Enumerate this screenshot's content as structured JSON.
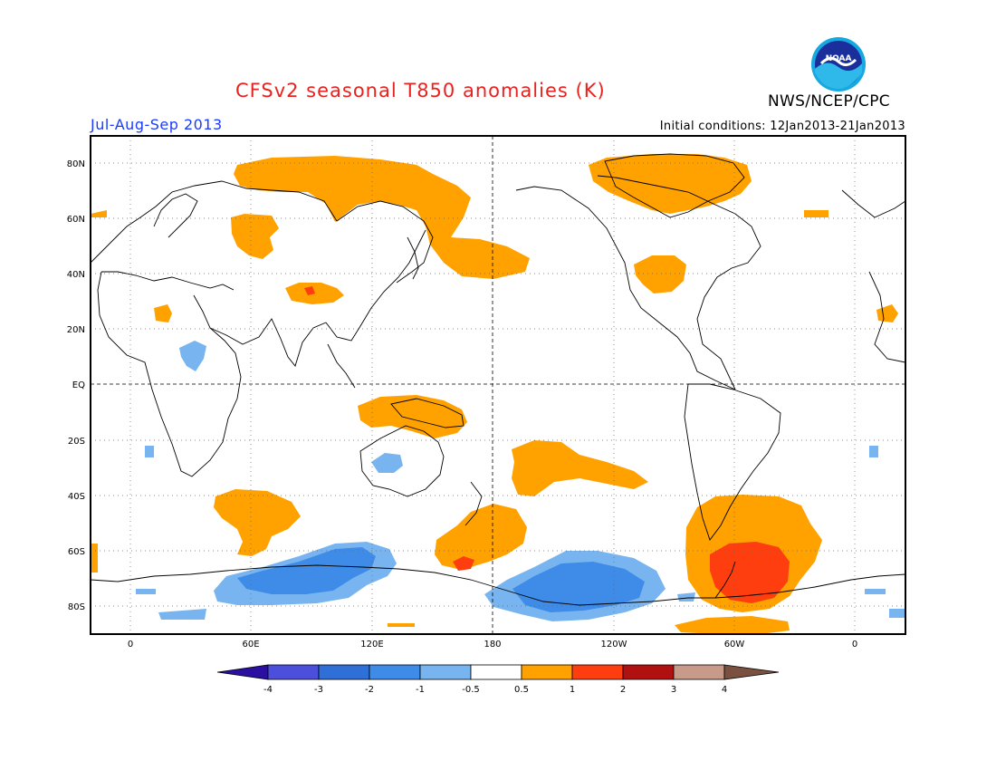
{
  "header": {
    "title": "CFSv2 seasonal T850 anomalies (K)",
    "period": "Jul-Aug-Sep 2013",
    "initial_conditions": "Initial conditions: 12Jan2013-21Jan2013",
    "agency": "NWS/NCEP/CPC",
    "logo_text": "NOAA"
  },
  "map": {
    "lat_ticks": [
      "80N",
      "60N",
      "40N",
      "20N",
      "EQ",
      "20S",
      "40S",
      "60S",
      "80S"
    ],
    "lon_ticks": [
      "0",
      "60E",
      "120E",
      "180",
      "120W",
      "60W",
      "0"
    ],
    "colors": {
      "warm_05_1": "#ffa200",
      "warm_1_2": "#ff3e0f",
      "cool_05_1": "#78b5f0",
      "cool_1_2": "#3f8ce8",
      "coast": "#000000"
    }
  },
  "colorbar": {
    "labels": [
      "-4",
      "-3",
      "-2",
      "-1",
      "-0.5",
      "0.5",
      "1",
      "2",
      "3",
      "4"
    ],
    "colors": [
      "#2a0fa0",
      "#4b4fdc",
      "#2e6fd8",
      "#3f8ce8",
      "#78b5f0",
      "#ffffff",
      "#ffa200",
      "#ff3e0f",
      "#b01010",
      "#c89a8a",
      "#7a5040"
    ]
  }
}
